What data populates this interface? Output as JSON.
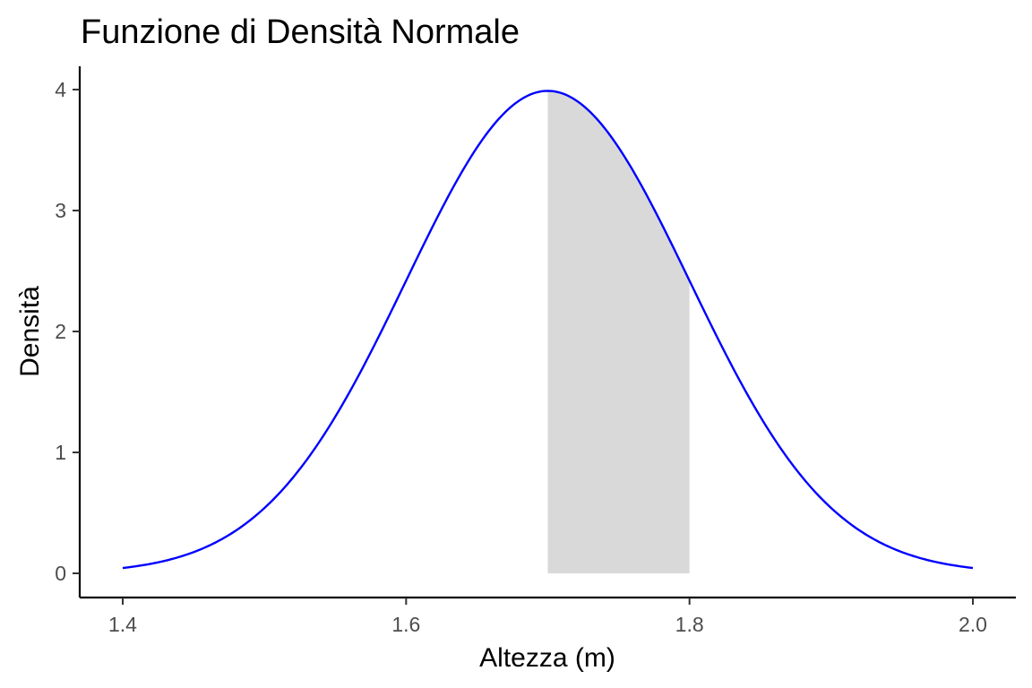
{
  "chart_data": {
    "type": "line",
    "title": "Funzione di Densità Normale",
    "xlabel": "Altezza (m)",
    "ylabel": "Densità",
    "xlim": [
      1.4,
      2.0
    ],
    "ylim": [
      0,
      4
    ],
    "x_ticks": [
      1.4,
      1.6,
      1.8,
      2.0
    ],
    "x_tick_labels": [
      "1.4",
      "1.6",
      "1.8",
      "2.0"
    ],
    "y_ticks": [
      0,
      1,
      2,
      3,
      4
    ],
    "y_tick_labels": [
      "0",
      "1",
      "2",
      "3",
      "4"
    ],
    "grid": false,
    "legend": "none",
    "distribution": {
      "family": "normal",
      "mean": 1.7,
      "sd": 0.1
    },
    "series": [
      {
        "x": [
          1.4,
          1.42,
          1.44,
          1.46,
          1.48,
          1.5,
          1.52,
          1.54,
          1.56,
          1.58,
          1.6,
          1.62,
          1.64,
          1.66,
          1.68,
          1.7,
          1.72,
          1.74,
          1.76,
          1.78,
          1.8,
          1.82,
          1.84,
          1.86,
          1.88,
          1.9,
          1.92,
          1.94,
          1.96,
          1.98,
          2.0
        ],
        "y": [
          0.044,
          0.079,
          0.136,
          0.224,
          0.355,
          0.54,
          0.79,
          1.109,
          1.497,
          1.942,
          2.42,
          2.897,
          3.332,
          3.683,
          3.91,
          3.989,
          3.91,
          3.683,
          3.332,
          2.897,
          2.42,
          1.942,
          1.497,
          1.109,
          0.79,
          0.54,
          0.355,
          0.224,
          0.136,
          0.079,
          0.044
        ],
        "color": "#0000ff"
      }
    ],
    "shaded_area": {
      "x_from": 1.7,
      "x_to": 1.8,
      "color": "#d9d9d9"
    }
  }
}
